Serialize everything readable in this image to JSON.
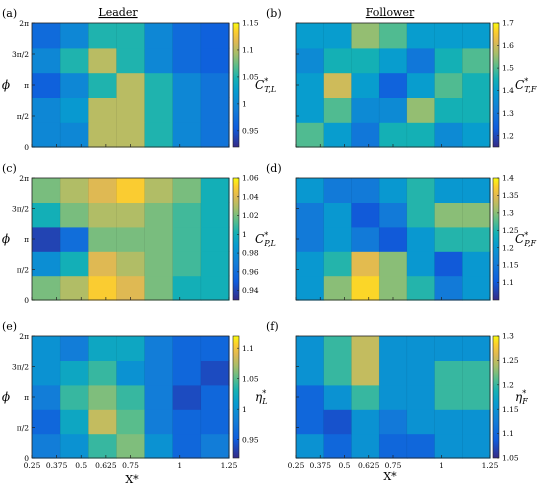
{
  "figure": {
    "col_titles": [
      "Leader",
      "Follower"
    ],
    "y_tick_labels": [
      "2π",
      "3π/2",
      "π",
      "π/2",
      "0"
    ],
    "x_tick_labels": [
      "0.25",
      "0.375",
      "0.5",
      "0.625",
      "0.75",
      "1",
      "1.25"
    ],
    "ylabel": "ϕ",
    "xlabel": "X*"
  },
  "chart_data": [
    {
      "type": "heatmap",
      "panel": "(a)",
      "name": "C*_T,L",
      "colorbar_label": "C*T,L",
      "colorbar_label_main": "C",
      "colorbar_label_sup": "*",
      "colorbar_label_sub": "T,L",
      "colorbar_ticks": [
        1.15,
        1.1,
        1.05,
        1,
        0.95
      ],
      "clim": [
        0.92,
        1.15
      ],
      "x_range": [
        0.25,
        1.25
      ],
      "y_range": [
        0,
        6.283
      ],
      "x_grid": [
        0.25,
        0.375,
        0.5,
        0.625,
        0.75,
        1.0,
        1.25
      ],
      "y_grid_labels": [
        "0",
        "π/2",
        "π",
        "3π/2",
        "2π"
      ],
      "values": [
        [
          1.0,
          1.0,
          1.1,
          1.1,
          1.05,
          1.0,
          0.98
        ],
        [
          1.0,
          1.02,
          1.1,
          1.1,
          1.05,
          1.0,
          0.98
        ],
        [
          0.96,
          1.0,
          1.05,
          1.1,
          1.05,
          1.0,
          0.98
        ],
        [
          1.0,
          1.05,
          1.1,
          1.05,
          1.0,
          0.97,
          0.96
        ],
        [
          0.97,
          1.0,
          1.05,
          1.05,
          1.0,
          0.97,
          0.96
        ]
      ]
    },
    {
      "type": "heatmap",
      "panel": "(b)",
      "name": "C*_T,F",
      "colorbar_label": "C*T,F",
      "colorbar_label_main": "C",
      "colorbar_label_sup": "*",
      "colorbar_label_sub": "T,F",
      "colorbar_ticks": [
        1.7,
        1.6,
        1.5,
        1.4,
        1.3,
        1.2
      ],
      "clim": [
        1.15,
        1.7
      ],
      "x_range": [
        0.25,
        1.25
      ],
      "y_range": [
        0,
        6.283
      ],
      "x_grid": [
        0.25,
        0.375,
        0.5,
        0.625,
        0.75,
        1.0,
        1.25
      ],
      "y_grid_labels": [
        "0",
        "π/2",
        "π",
        "3π/2",
        "2π"
      ],
      "values": [
        [
          1.5,
          1.4,
          1.3,
          1.45,
          1.45,
          1.35,
          1.4
        ],
        [
          1.4,
          1.5,
          1.35,
          1.35,
          1.55,
          1.45,
          1.45
        ],
        [
          1.4,
          1.6,
          1.4,
          1.25,
          1.4,
          1.5,
          1.45
        ],
        [
          1.35,
          1.45,
          1.45,
          1.4,
          1.3,
          1.45,
          1.5
        ],
        [
          1.4,
          1.4,
          1.55,
          1.5,
          1.4,
          1.4,
          1.4
        ]
      ]
    },
    {
      "type": "heatmap",
      "panel": "(c)",
      "name": "C*_P,L",
      "colorbar_label": "C*P,L",
      "colorbar_label_main": "C",
      "colorbar_label_sup": "*",
      "colorbar_label_sub": "P,L",
      "colorbar_ticks": [
        1.06,
        1.04,
        1.02,
        1,
        0.98,
        0.96,
        0.94
      ],
      "clim": [
        0.93,
        1.06
      ],
      "x_range": [
        0.25,
        1.25
      ],
      "y_range": [
        0,
        6.283
      ],
      "x_grid": [
        0.25,
        0.375,
        0.5,
        0.625,
        0.75,
        1.0,
        1.25
      ],
      "y_grid_labels": [
        "0",
        "π/2",
        "π",
        "3π/2",
        "2π"
      ],
      "values": [
        [
          1.02,
          1.03,
          1.05,
          1.04,
          1.02,
          1.0,
          1.0
        ],
        [
          0.98,
          1.0,
          1.04,
          1.03,
          1.02,
          1.01,
          1.0
        ],
        [
          0.94,
          0.96,
          1.02,
          1.02,
          1.02,
          1.01,
          1.0
        ],
        [
          1.0,
          1.02,
          1.03,
          1.03,
          1.02,
          1.01,
          1.0
        ],
        [
          1.02,
          1.03,
          1.04,
          1.05,
          1.03,
          1.02,
          1.0
        ]
      ]
    },
    {
      "type": "heatmap",
      "panel": "(d)",
      "name": "C*_P,F",
      "colorbar_label": "C*P,F",
      "colorbar_label_main": "C",
      "colorbar_label_sup": "*",
      "colorbar_label_sub": "P,F",
      "colorbar_ticks": [
        1.4,
        1.35,
        1.3,
        1.25,
        1.2,
        1.15,
        1.1
      ],
      "clim": [
        1.05,
        1.4
      ],
      "x_range": [
        0.25,
        1.25
      ],
      "y_range": [
        0,
        6.283
      ],
      "x_grid": [
        0.25,
        0.375,
        0.5,
        0.625,
        0.75,
        1.0,
        1.25
      ],
      "y_grid_labels": [
        "0",
        "π/2",
        "π",
        "3π/2",
        "2π"
      ],
      "values": [
        [
          1.2,
          1.3,
          1.38,
          1.3,
          1.25,
          1.15,
          1.2
        ],
        [
          1.2,
          1.25,
          1.35,
          1.3,
          1.2,
          1.1,
          1.2
        ],
        [
          1.15,
          1.2,
          1.15,
          1.1,
          1.2,
          1.25,
          1.25
        ],
        [
          1.15,
          1.2,
          1.1,
          1.15,
          1.25,
          1.3,
          1.3
        ],
        [
          1.2,
          1.15,
          1.15,
          1.2,
          1.25,
          1.2,
          1.2
        ]
      ]
    },
    {
      "type": "heatmap",
      "panel": "(e)",
      "name": "η*_L",
      "colorbar_label": "η*L",
      "colorbar_label_main": "η",
      "colorbar_label_sup": "*",
      "colorbar_label_sub": "L",
      "colorbar_ticks": [
        1.1,
        1.05,
        1,
        0.95
      ],
      "clim": [
        0.92,
        1.12
      ],
      "x_range": [
        0.25,
        1.25
      ],
      "y_range": [
        0,
        6.283
      ],
      "x_grid": [
        0.25,
        0.375,
        0.5,
        0.625,
        0.75,
        1.0,
        1.25
      ],
      "y_grid_labels": [
        "0",
        "π/2",
        "π",
        "3π/2",
        "2π"
      ],
      "values": [
        [
          0.98,
          1.0,
          1.04,
          1.06,
          1.0,
          0.96,
          0.98
        ],
        [
          0.96,
          1.02,
          1.08,
          1.05,
          0.98,
          0.96,
          0.96
        ],
        [
          0.98,
          1.04,
          1.06,
          1.04,
          0.98,
          0.94,
          0.96
        ],
        [
          1.0,
          1.02,
          1.04,
          1.0,
          0.98,
          0.96,
          0.94
        ],
        [
          1.0,
          0.98,
          1.02,
          1.02,
          0.98,
          0.96,
          0.96
        ]
      ]
    },
    {
      "type": "heatmap",
      "panel": "(f)",
      "name": "η*_F",
      "colorbar_label": "η*F",
      "colorbar_label_main": "η",
      "colorbar_label_sup": "*",
      "colorbar_label_sub": "F",
      "colorbar_ticks": [
        1.3,
        1.25,
        1.2,
        1.15,
        1.1,
        1.05
      ],
      "clim": [
        1.05,
        1.3
      ],
      "x_range": [
        0.25,
        1.25
      ],
      "y_range": [
        0,
        6.283
      ],
      "x_grid": [
        0.25,
        0.375,
        0.5,
        0.625,
        0.75,
        1.0,
        1.25
      ],
      "y_grid_labels": [
        "0",
        "π/2",
        "π",
        "3π/2",
        "2π"
      ],
      "values": [
        [
          1.15,
          1.1,
          1.15,
          1.1,
          1.1,
          1.15,
          1.15
        ],
        [
          1.1,
          1.08,
          1.15,
          1.12,
          1.15,
          1.15,
          1.15
        ],
        [
          1.1,
          1.15,
          1.2,
          1.15,
          1.15,
          1.2,
          1.2
        ],
        [
          1.15,
          1.2,
          1.25,
          1.15,
          1.15,
          1.2,
          1.2
        ],
        [
          1.15,
          1.2,
          1.25,
          1.15,
          1.15,
          1.15,
          1.15
        ]
      ]
    }
  ]
}
